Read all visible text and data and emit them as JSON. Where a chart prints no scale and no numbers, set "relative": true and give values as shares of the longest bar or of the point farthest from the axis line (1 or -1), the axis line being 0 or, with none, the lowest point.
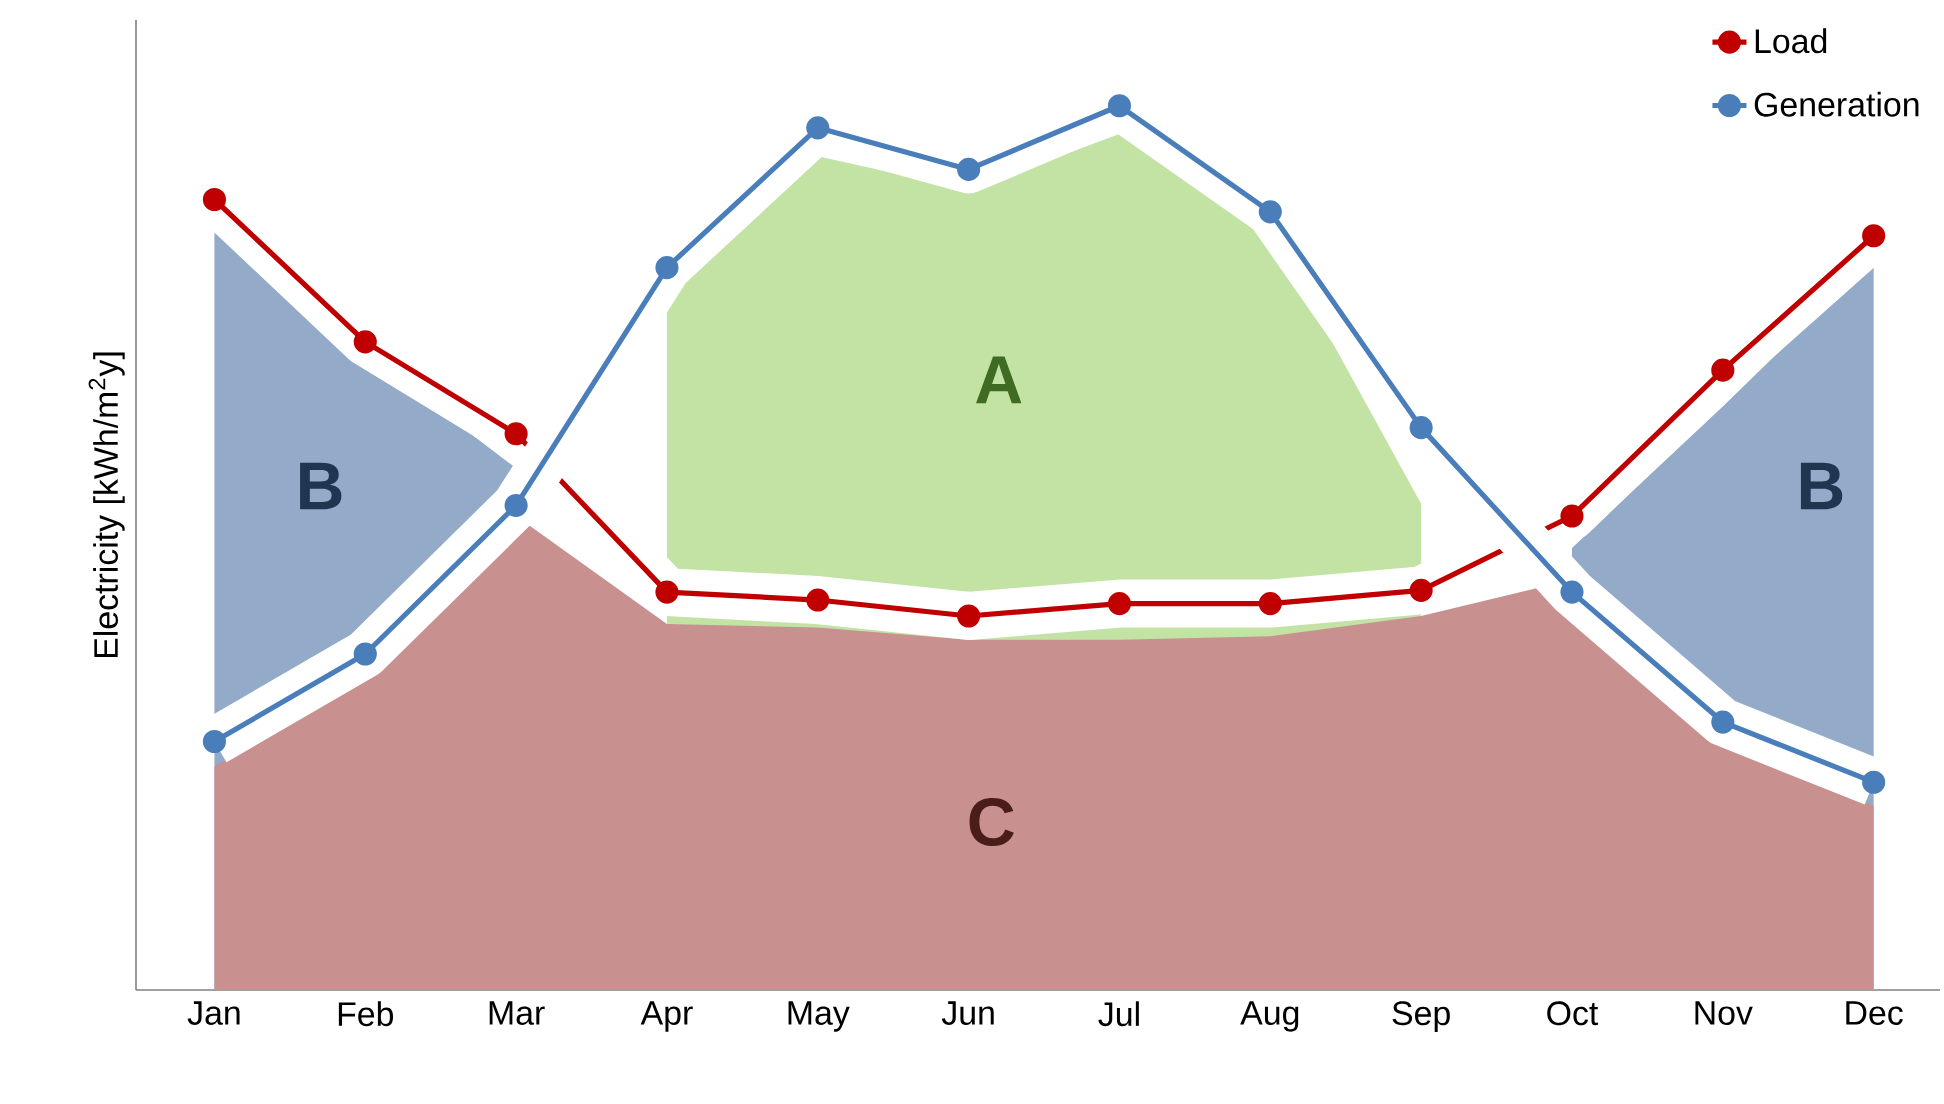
{
  "chart_data": {
    "type": "line",
    "relative": true,
    "ylabel": "Electricity [kWh/m$^{2}$y]",
    "categories": [
      "Jan",
      "Feb",
      "Mar",
      "Apr",
      "May",
      "Jun",
      "Jul",
      "Aug",
      "Sep",
      "Oct",
      "Nov",
      "Dec"
    ],
    "series": [
      {
        "type": "area",
        "marker": "none",
        "color": "#c3e3a5",
        "values": [
          null,
          null,
          null,
          0.78,
          0.943,
          0.905,
          0.968,
          0.86,
          0.55,
          null,
          null,
          null
        ]
      },
      {
        "type": "area",
        "marker": "none",
        "color": "#93aac8",
        "values": [
          0.882,
          0.72,
          0.59,
          null,
          null,
          null,
          null,
          null,
          null,
          null,
          null,
          null
        ]
      },
      {
        "type": "area",
        "marker": "none",
        "color": "#93aac8",
        "values": [
          null,
          null,
          null,
          null,
          null,
          null,
          null,
          null,
          null,
          0.5,
          0.66,
          0.826
        ]
      },
      {
        "type": "area",
        "marker": "none",
        "color": "#c8918f",
        "values": [
          0.253,
          0.35,
          0.536,
          0.414,
          0.41,
          0.396,
          0.396,
          0.4,
          0.423,
          0.464,
          0.283,
          0.208
        ]
      },
      {
        "name": "Load",
        "color": "#c00000",
        "values": [
          0.894,
          0.733,
          0.629,
          0.45,
          0.441,
          0.423,
          0.437,
          0.437,
          0.452,
          0.536,
          0.701,
          0.853
        ]
      },
      {
        "name": "Generation",
        "color": "#4a7ebb",
        "values": [
          0.281,
          0.38,
          0.548,
          0.817,
          0.975,
          0.928,
          1,
          0.88,
          0.636,
          0.45,
          0.303,
          0.235
        ]
      }
    ],
    "annotations": [
      "A",
      "B",
      "C",
      "B"
    ],
    "legend": "top right",
    "marker": "circle",
    "line_style": "solid"
  }
}
